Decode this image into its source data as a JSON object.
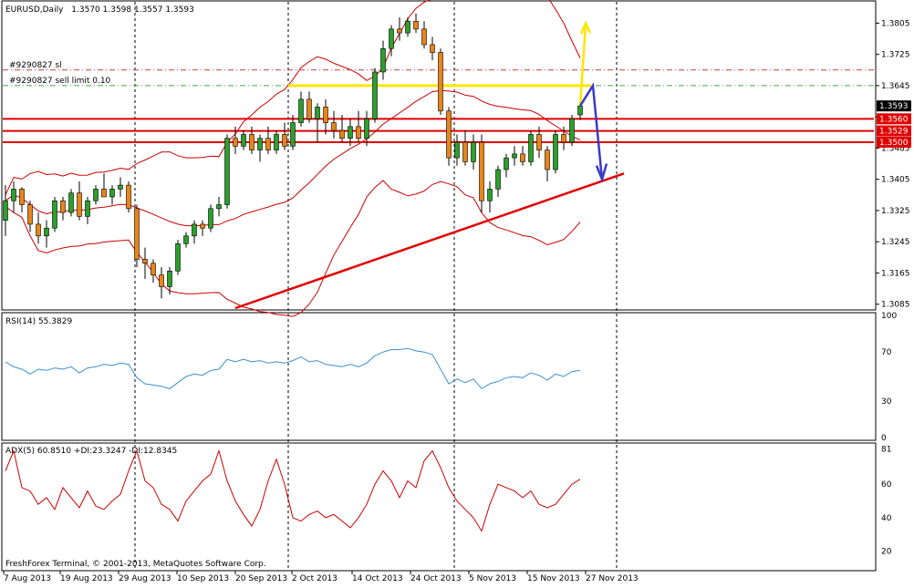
{
  "chart_data": [
    {
      "type": "candlestick",
      "title": "EURUSD,Daily",
      "ohlc_label": "1.3570 1.3598 1.3557 1.3593",
      "price_ticks": [
        "1.3805",
        "1.3725",
        "1.3645",
        "1.3565",
        "1.3485",
        "1.3405",
        "1.3325",
        "1.3245",
        "1.3165",
        "1.3085"
      ],
      "ylim": [
        1.3075,
        1.3855
      ],
      "current_price": "1.3593",
      "level_labels": [
        "1.3560",
        "1.3529",
        "1.3500"
      ],
      "order_lines": [
        {
          "label": "#9290827 sl",
          "price": 1.3685
        },
        {
          "label": "#9290827 sell limit 0.10",
          "price": 1.3645
        }
      ],
      "candles": [
        [
          1.33,
          1.339,
          1.326,
          1.335
        ],
        [
          1.335,
          1.34,
          1.332,
          1.338
        ],
        [
          1.338,
          1.3385,
          1.332,
          1.334
        ],
        [
          1.334,
          1.335,
          1.327,
          1.329
        ],
        [
          1.329,
          1.332,
          1.324,
          1.326
        ],
        [
          1.326,
          1.33,
          1.323,
          1.328
        ],
        [
          1.328,
          1.336,
          1.327,
          1.335
        ],
        [
          1.335,
          1.336,
          1.33,
          1.332
        ],
        [
          1.332,
          1.338,
          1.331,
          1.337
        ],
        [
          1.337,
          1.34,
          1.33,
          1.331
        ],
        [
          1.331,
          1.336,
          1.329,
          1.335
        ],
        [
          1.335,
          1.339,
          1.334,
          1.338
        ],
        [
          1.338,
          1.342,
          1.336,
          1.336
        ],
        [
          1.336,
          1.339,
          1.334,
          1.338
        ],
        [
          1.338,
          1.341,
          1.336,
          1.339
        ],
        [
          1.339,
          1.34,
          1.332,
          1.333
        ],
        [
          1.333,
          1.334,
          1.318,
          1.32
        ],
        [
          1.32,
          1.323,
          1.315,
          1.319
        ],
        [
          1.319,
          1.32,
          1.314,
          1.316
        ],
        [
          1.316,
          1.318,
          1.31,
          1.313
        ],
        [
          1.313,
          1.318,
          1.311,
          1.317
        ],
        [
          1.317,
          1.325,
          1.316,
          1.324
        ],
        [
          1.324,
          1.327,
          1.323,
          1.326
        ],
        [
          1.326,
          1.33,
          1.324,
          1.329
        ],
        [
          1.329,
          1.33,
          1.326,
          1.328
        ],
        [
          1.328,
          1.334,
          1.327,
          1.333
        ],
        [
          1.333,
          1.336,
          1.331,
          1.334
        ],
        [
          1.334,
          1.352,
          1.333,
          1.351
        ],
        [
          1.351,
          1.354,
          1.347,
          1.349
        ],
        [
          1.349,
          1.353,
          1.348,
          1.352
        ],
        [
          1.352,
          1.354,
          1.347,
          1.348
        ],
        [
          1.348,
          1.352,
          1.345,
          1.351
        ],
        [
          1.351,
          1.354,
          1.347,
          1.348
        ],
        [
          1.348,
          1.353,
          1.347,
          1.352
        ],
        [
          1.352,
          1.355,
          1.348,
          1.349
        ],
        [
          1.349,
          1.357,
          1.348,
          1.355
        ],
        [
          1.355,
          1.363,
          1.354,
          1.361
        ],
        [
          1.361,
          1.363,
          1.355,
          1.356
        ],
        [
          1.356,
          1.36,
          1.35,
          1.359
        ],
        [
          1.359,
          1.361,
          1.352,
          1.355
        ],
        [
          1.355,
          1.358,
          1.351,
          1.353
        ],
        [
          1.353,
          1.357,
          1.35,
          1.351
        ],
        [
          1.351,
          1.356,
          1.349,
          1.354
        ],
        [
          1.354,
          1.358,
          1.35,
          1.351
        ],
        [
          1.351,
          1.358,
          1.349,
          1.356
        ],
        [
          1.356,
          1.369,
          1.355,
          1.368
        ],
        [
          1.368,
          1.376,
          1.366,
          1.374
        ],
        [
          1.374,
          1.38,
          1.372,
          1.379
        ],
        [
          1.379,
          1.382,
          1.376,
          1.378
        ],
        [
          1.378,
          1.382,
          1.377,
          1.381
        ],
        [
          1.381,
          1.383,
          1.378,
          1.379
        ],
        [
          1.379,
          1.381,
          1.374,
          1.375
        ],
        [
          1.375,
          1.377,
          1.371,
          1.373
        ],
        [
          1.373,
          1.374,
          1.357,
          1.358
        ],
        [
          1.358,
          1.359,
          1.344,
          1.346
        ],
        [
          1.346,
          1.352,
          1.344,
          1.35
        ],
        [
          1.35,
          1.353,
          1.344,
          1.345
        ],
        [
          1.345,
          1.352,
          1.343,
          1.35
        ],
        [
          1.35,
          1.352,
          1.332,
          1.335
        ],
        [
          1.335,
          1.34,
          1.332,
          1.338
        ],
        [
          1.338,
          1.344,
          1.336,
          1.343
        ],
        [
          1.343,
          1.347,
          1.341,
          1.346
        ],
        [
          1.346,
          1.349,
          1.344,
          1.347
        ],
        [
          1.347,
          1.349,
          1.344,
          1.345
        ],
        [
          1.345,
          1.353,
          1.344,
          1.352
        ],
        [
          1.352,
          1.354,
          1.346,
          1.348
        ],
        [
          1.348,
          1.349,
          1.34,
          1.343
        ],
        [
          1.343,
          1.353,
          1.342,
          1.352
        ],
        [
          1.352,
          1.354,
          1.348,
          1.35
        ],
        [
          1.35,
          1.357,
          1.349,
          1.356
        ],
        [
          1.357,
          1.3598,
          1.3557,
          1.3593
        ]
      ],
      "indicators": [
        "Bollinger Bands",
        "Moving Average"
      ]
    },
    {
      "type": "line",
      "title": "RSI(14) 55.3829",
      "y_ticks": [
        "100",
        "70",
        "30",
        "0"
      ],
      "ylim": [
        0,
        100
      ],
      "values": [
        62,
        58,
        56,
        52,
        56,
        55,
        57,
        56,
        58,
        53,
        57,
        58,
        60,
        59,
        61,
        60,
        49,
        44,
        43,
        42,
        40,
        45,
        50,
        52,
        51,
        55,
        56,
        64,
        62,
        64,
        62,
        63,
        61,
        62,
        61,
        63,
        66,
        62,
        63,
        60,
        59,
        58,
        60,
        58,
        61,
        67,
        70,
        72,
        72,
        73,
        71,
        70,
        68,
        56,
        44,
        48,
        45,
        48,
        40,
        44,
        46,
        49,
        50,
        49,
        53,
        51,
        47,
        52,
        50,
        54,
        55
      ]
    },
    {
      "type": "line",
      "title": "ADX(5) 60.8510 +DI:23.3247 -DI:12.8345",
      "y_ticks": [
        "81",
        "60",
        "40",
        "20"
      ],
      "ylim": [
        10,
        83
      ],
      "values": [
        68,
        80,
        58,
        56,
        48,
        52,
        45,
        58,
        52,
        46,
        56,
        47,
        45,
        50,
        54,
        68,
        80,
        62,
        58,
        48,
        45,
        38,
        50,
        56,
        62,
        66,
        80,
        62,
        50,
        42,
        35,
        45,
        62,
        75,
        60,
        40,
        38,
        42,
        44,
        40,
        42,
        38,
        34,
        40,
        48,
        60,
        68,
        62,
        52,
        62,
        58,
        74,
        80,
        70,
        58,
        50,
        45,
        40,
        32,
        48,
        60,
        58,
        56,
        52,
        56,
        48,
        46,
        48,
        54,
        60,
        63
      ]
    }
  ],
  "x_axis_labels": [
    "7 Aug 2013",
    "19 Aug 2013",
    "29 Aug 2013",
    "10 Sep 2013",
    "20 Sep 2013",
    "2 Oct 2013",
    "14 Oct 2013",
    "24 Oct 2013",
    "5 Nov 2013",
    "15 Nov 2013",
    "27 Nov 2013"
  ],
  "copyright": "FreshForex Terminal, © 2001-2013, MetaQuotes Software Corp.",
  "colors": {
    "bull": "#2ca02c",
    "bear": "#e8851a",
    "band": "#cc0000",
    "hline": "#e00000",
    "yellow": "#ffe600",
    "blue": "#3a3ac8",
    "order_dash": "#c04040",
    "sell_dash": "#44aa44",
    "rsi": "#3a8fd0",
    "adx": "#cc0000"
  }
}
